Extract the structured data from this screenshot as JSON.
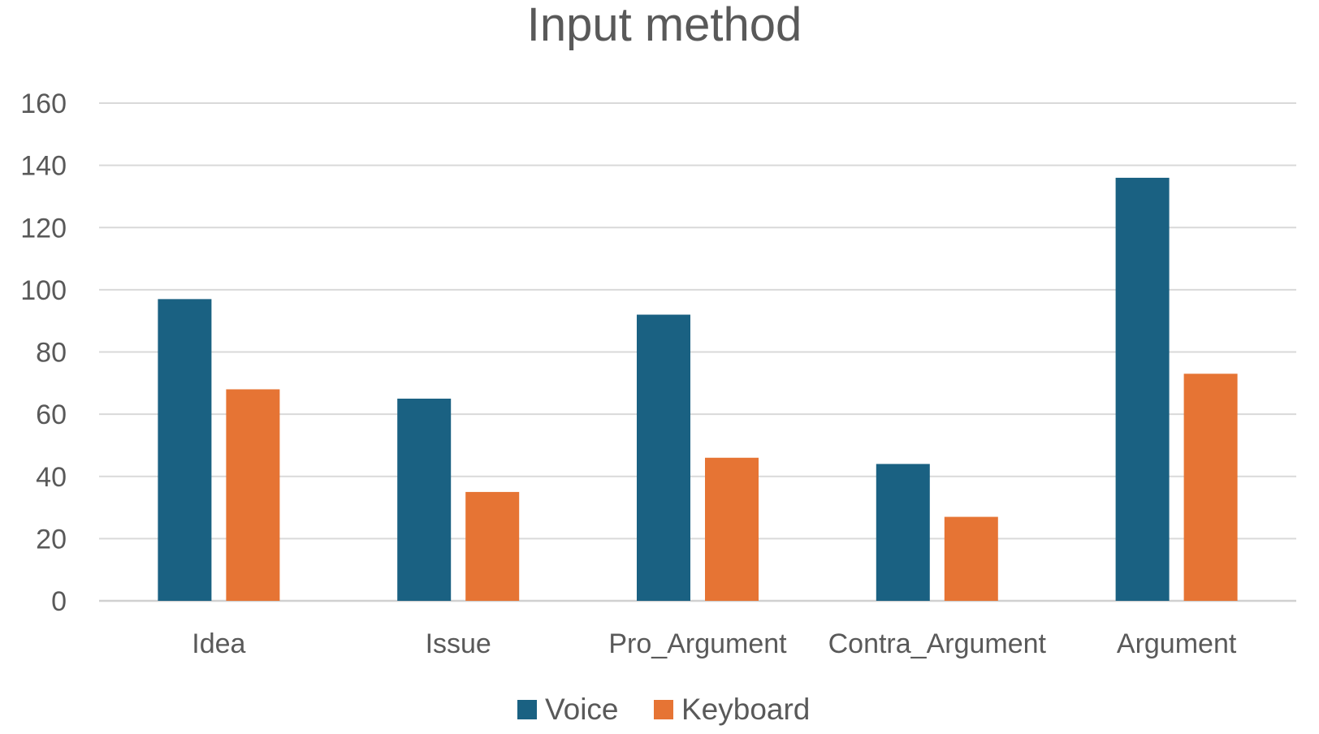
{
  "chart_data": {
    "type": "bar",
    "title": "Input method",
    "xlabel": "",
    "ylabel": "",
    "categories": [
      "Idea",
      "Issue",
      "Pro_Argument",
      "Contra_Argument",
      "Argument"
    ],
    "series": [
      {
        "name": "Voice",
        "values": [
          97,
          65,
          92,
          44,
          136
        ],
        "color": "#1a6182"
      },
      {
        "name": "Keyboard",
        "values": [
          68,
          35,
          46,
          27,
          73
        ],
        "color": "#e67434"
      }
    ],
    "ylim": [
      0,
      160
    ],
    "yticks": [
      "0",
      "20",
      "40",
      "60",
      "80",
      "100",
      "120",
      "140",
      "160"
    ],
    "grid": true,
    "legend_position": "bottom"
  }
}
